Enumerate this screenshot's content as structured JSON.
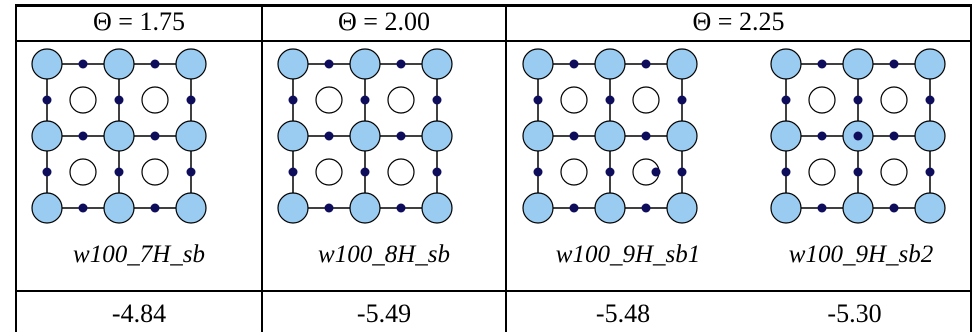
{
  "headers": {
    "col1": "Θ = 1.75",
    "col2": "Θ = 2.00",
    "col3": "Θ = 2.25"
  },
  "structures": [
    {
      "label": "w100_7H_sb",
      "energy": "-4.84"
    },
    {
      "label": "w100_8H_sb",
      "energy": "-5.49"
    },
    {
      "label": "w100_9H_sb1",
      "energy": "-5.48"
    },
    {
      "label": "w100_9H_sb2",
      "energy": "-5.30"
    }
  ],
  "colors": {
    "w_atom": "#99ccf0",
    "h_atom": "#0d0d5c",
    "line": "#000000"
  }
}
